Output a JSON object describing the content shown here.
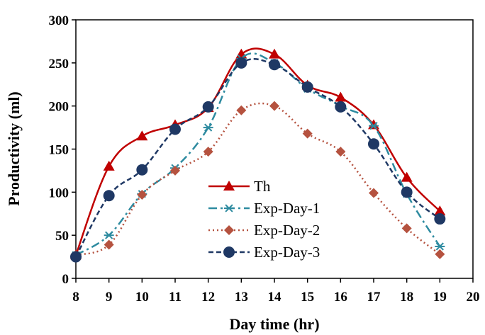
{
  "chart_data": {
    "type": "line",
    "title": "",
    "xlabel": "Day time (hr)",
    "ylabel": "Productivity (ml)",
    "xlim": [
      8,
      20
    ],
    "ylim": [
      0,
      300
    ],
    "x_ticks": [
      8,
      9,
      10,
      11,
      12,
      13,
      14,
      15,
      16,
      17,
      18,
      19,
      20
    ],
    "y_ticks": [
      0,
      50,
      100,
      150,
      200,
      250,
      300
    ],
    "grid": false,
    "legend_placement": "bottom-center",
    "x": [
      8,
      9,
      10,
      11,
      12,
      13,
      14,
      15,
      16,
      17,
      18,
      19
    ],
    "series": [
      {
        "name": "Th",
        "values": [
          27,
          130,
          165,
          178,
          198,
          260,
          260,
          224,
          210,
          178,
          117,
          78
        ],
        "color": "#c00000",
        "line": "solid",
        "marker": "triangle"
      },
      {
        "name": "Exp-Day-1",
        "values": [
          27,
          50,
          98,
          128,
          175,
          255,
          250,
          220,
          200,
          177,
          98,
          37
        ],
        "color": "#2e8ba0",
        "line": "dashdot",
        "marker": "asterisk"
      },
      {
        "name": "Exp-Day-2",
        "values": [
          27,
          39,
          97,
          125,
          147,
          195,
          200,
          168,
          147,
          99,
          58,
          28
        ],
        "color": "#b5523f",
        "line": "dotted",
        "marker": "diamond"
      },
      {
        "name": "Exp-Day-3",
        "values": [
          25,
          96,
          126,
          173,
          199,
          250,
          248,
          222,
          199,
          156,
          100,
          69
        ],
        "color": "#1f3864",
        "line": "dashed",
        "marker": "circle"
      }
    ]
  }
}
